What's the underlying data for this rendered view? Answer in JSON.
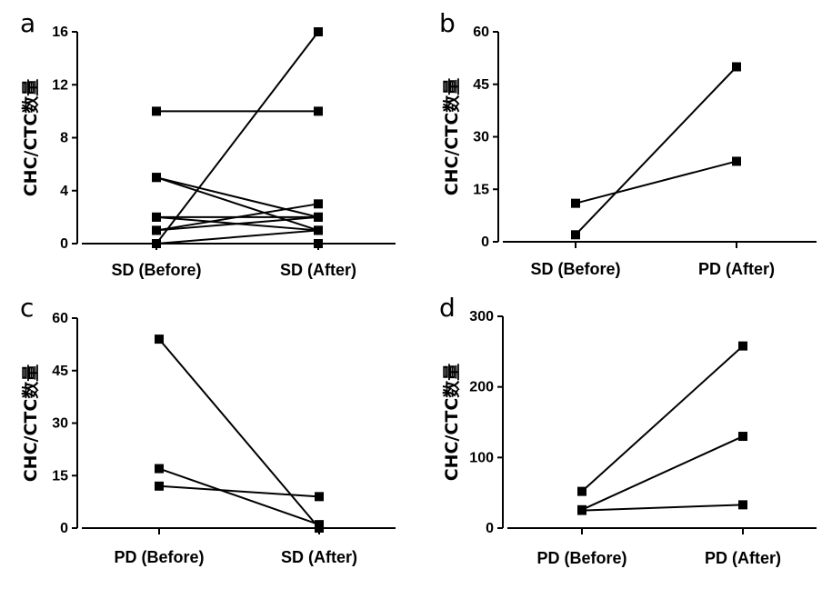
{
  "chart_data": [
    {
      "panel": "a",
      "type": "line",
      "ylabel": "CHC/CTC数量",
      "categories": [
        "SD (Before)",
        "SD (After)"
      ],
      "ylim": [
        0,
        16
      ],
      "yticks": [
        0,
        4,
        8,
        12,
        16
      ],
      "pairs": [
        [
          0,
          16
        ],
        [
          10,
          10
        ],
        [
          5,
          1
        ],
        [
          5,
          2
        ],
        [
          2,
          2
        ],
        [
          2,
          1
        ],
        [
          1,
          2
        ],
        [
          1,
          3
        ],
        [
          0,
          1
        ],
        [
          0,
          0
        ]
      ]
    },
    {
      "panel": "b",
      "type": "line",
      "ylabel": "CHC/CTC数量",
      "categories": [
        "SD (Before)",
        "PD (After)"
      ],
      "ylim": [
        0,
        60
      ],
      "yticks": [
        0,
        15,
        30,
        45,
        60
      ],
      "pairs": [
        [
          11,
          23
        ],
        [
          2,
          50
        ]
      ]
    },
    {
      "panel": "c",
      "type": "line",
      "ylabel": "CHC/CTC数量",
      "categories": [
        "PD (Before)",
        "SD (After)"
      ],
      "ylim": [
        0,
        60
      ],
      "yticks": [
        0,
        15,
        30,
        45,
        60
      ],
      "pairs": [
        [
          54,
          0
        ],
        [
          17,
          1
        ],
        [
          12,
          9
        ]
      ]
    },
    {
      "panel": "d",
      "type": "line",
      "ylabel": "CHC/CTC数量",
      "categories": [
        "PD (Before)",
        "PD (After)"
      ],
      "ylim": [
        0,
        300
      ],
      "yticks": [
        0,
        100,
        200,
        300
      ],
      "pairs": [
        [
          52,
          258
        ],
        [
          26,
          130
        ],
        [
          25,
          33
        ]
      ]
    }
  ]
}
